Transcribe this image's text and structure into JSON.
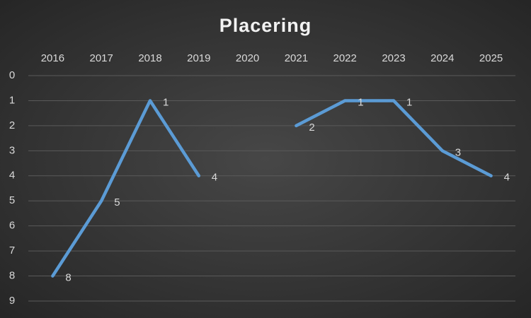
{
  "chart_data": {
    "type": "line",
    "title": "Placering",
    "categories": [
      "2016",
      "2017",
      "2018",
      "2019",
      "2020",
      "2021",
      "2022",
      "2023",
      "2024",
      "2025"
    ],
    "values": [
      8,
      5,
      1,
      4,
      null,
      2,
      1,
      1,
      3,
      4
    ],
    "color": "#5b9bd5",
    "ylim": [
      0,
      9
    ],
    "yticks": [
      0,
      1,
      2,
      3,
      4,
      5,
      6,
      7,
      8,
      9
    ],
    "y_inverted": true,
    "x_axis_position": "top",
    "grid": true,
    "data_labels": true
  }
}
